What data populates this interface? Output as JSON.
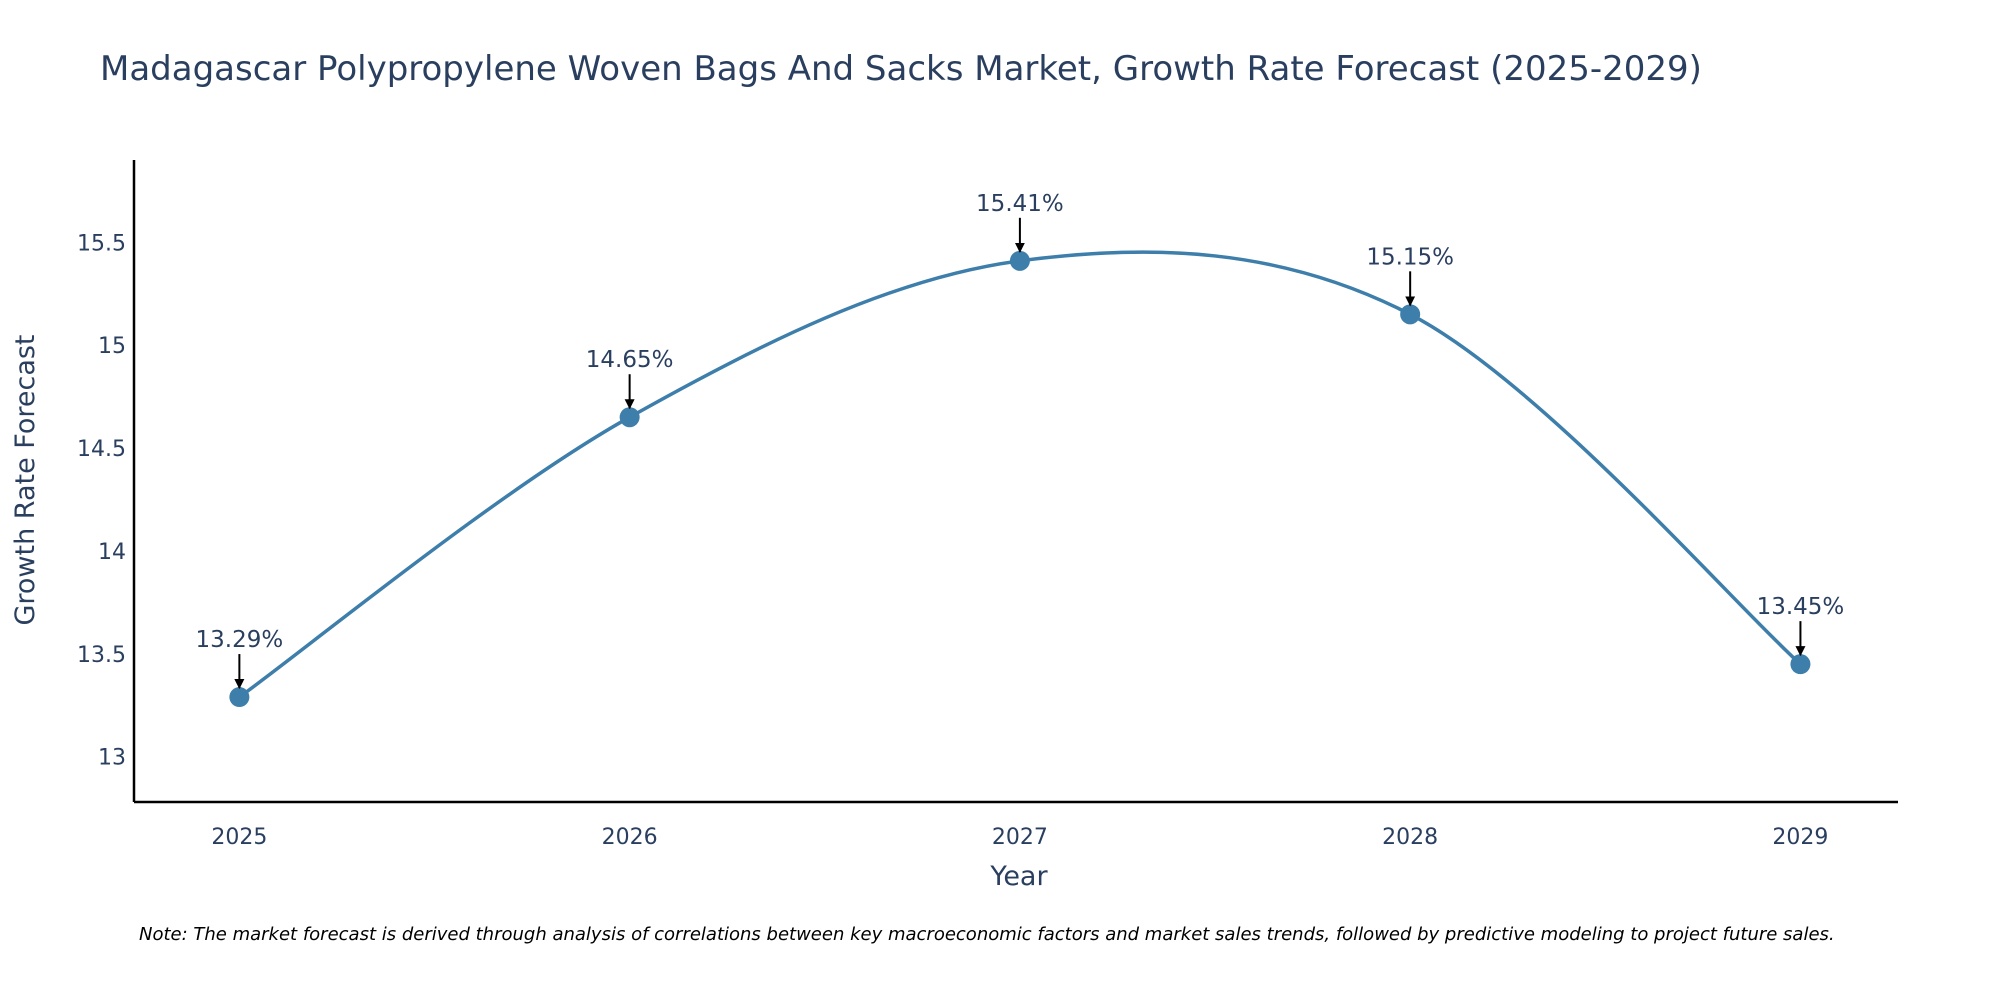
{
  "chart_data": {
    "type": "line",
    "title": "Madagascar Polypropylene Woven Bags And Sacks Market, Growth Rate Forecast (2025-2029)",
    "xlabel": "Year",
    "ylabel": "Growth Rate Forecast",
    "categories": [
      "2025",
      "2026",
      "2027",
      "2028",
      "2029"
    ],
    "x": [
      2025,
      2026,
      2027,
      2028,
      2029
    ],
    "values": [
      13.29,
      14.65,
      15.41,
      15.15,
      13.45
    ],
    "data_labels": [
      "13.29%",
      "14.65%",
      "15.41%",
      "15.15%",
      "13.45%"
    ],
    "ylim": [
      12.78,
      15.9
    ],
    "xlim": [
      2024.73,
      2029.25
    ],
    "yticks": [
      13,
      13.5,
      14,
      14.5,
      15,
      15.5
    ],
    "ytick_labels": [
      "13",
      "13.5",
      "14",
      "14.5",
      "15",
      "15.5"
    ],
    "xtick_labels": [
      "2025",
      "2026",
      "2027",
      "2028",
      "2029"
    ],
    "grid": false,
    "line_shape": "spline",
    "annotations_style": "arrow pointing to each point with percentage label above",
    "note": "Note: The market forecast is derived through analysis of correlations between key macroeconomic factors and market sales trends, followed by predictive modeling to project future sales."
  },
  "colors": {
    "line": "#3d7eab",
    "marker": "#3d7eab",
    "text": "#2a3f5f",
    "axis": "#000000",
    "arrow": "#000000",
    "note": "#000000"
  }
}
